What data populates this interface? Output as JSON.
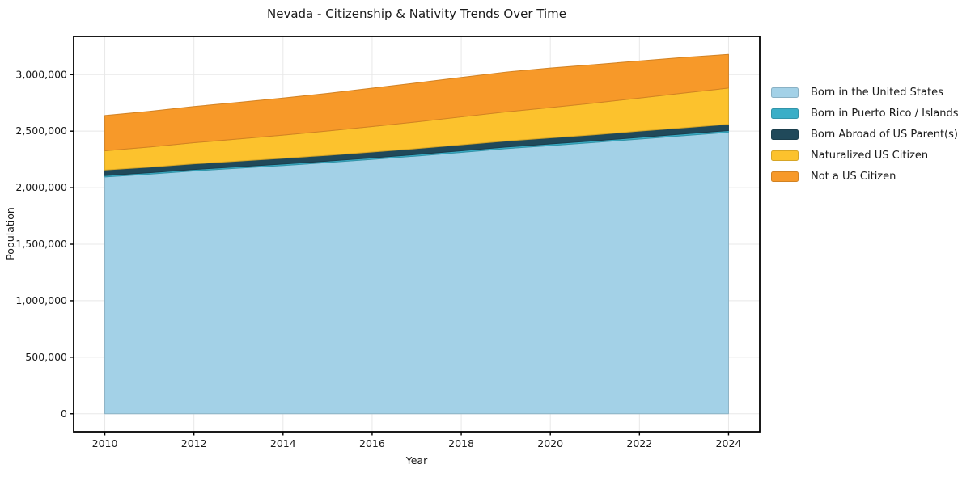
{
  "chart_data": {
    "type": "area",
    "stacked": true,
    "title": "Nevada - Citizenship & Nativity Trends Over Time",
    "xlabel": "Year",
    "ylabel": "Population",
    "x": [
      2010,
      2011,
      2012,
      2013,
      2014,
      2015,
      2016,
      2017,
      2018,
      2019,
      2020,
      2021,
      2022,
      2023,
      2024
    ],
    "series": [
      {
        "name": "Born in the United States",
        "color": "#a3d1e7",
        "values": [
          2095000,
          2120000,
          2148000,
          2172000,
          2196000,
          2222000,
          2250000,
          2280000,
          2312000,
          2345000,
          2372000,
          2400000,
          2430000,
          2460000,
          2490000
        ]
      },
      {
        "name": "Born in Puerto Rico / Islands",
        "color": "#3aaec7",
        "values": [
          12000,
          12000,
          12500,
          12500,
          13000,
          13000,
          13500,
          13500,
          14000,
          14000,
          14500,
          14500,
          15000,
          15000,
          15000
        ]
      },
      {
        "name": "Born Abroad of US Parent(s)",
        "color": "#20495a",
        "values": [
          49000,
          49000,
          50000,
          50000,
          51000,
          51000,
          52000,
          52000,
          53000,
          53000,
          54000,
          54000,
          55000,
          55000,
          56000
        ]
      },
      {
        "name": "Naturalized US Citizen",
        "color": "#fcc22d",
        "values": [
          170000,
          178000,
          187000,
          196000,
          205000,
          215000,
          225000,
          236000,
          247000,
          258000,
          268000,
          280000,
          293000,
          307000,
          320000
        ]
      },
      {
        "name": "Not a US Citizen",
        "color": "#f79929",
        "values": [
          312000,
          316000,
          320000,
          324000,
          328000,
          333000,
          340000,
          345000,
          349000,
          352000,
          350000,
          340000,
          328000,
          315000,
          298000
        ]
      }
    ],
    "xticks": [
      2010,
      2012,
      2014,
      2016,
      2018,
      2020,
      2022,
      2024
    ],
    "yticks": [
      0,
      500000,
      1000000,
      1500000,
      2000000,
      2500000,
      3000000
    ],
    "xlim": [
      2009.3,
      2024.7
    ],
    "ylim": [
      -159000,
      3338000
    ],
    "grid": true,
    "legend_position": "right",
    "colors": {
      "background": "#ffffff",
      "gridline": "#e8e8e8",
      "spine": "#000000",
      "text": "#1a1a1a"
    }
  }
}
